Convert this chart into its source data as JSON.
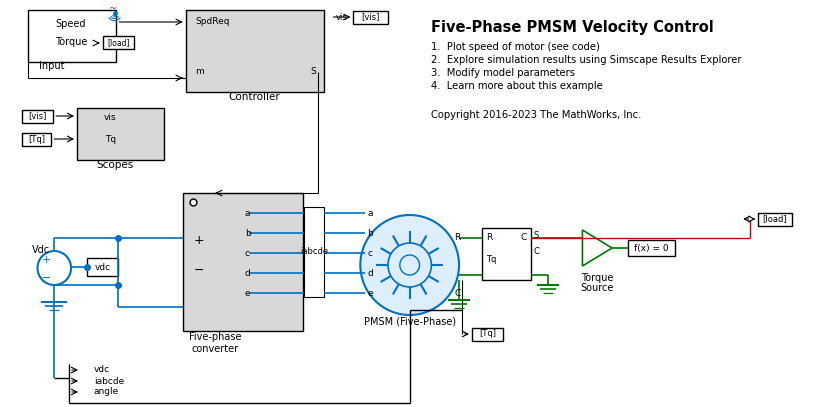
{
  "title": "Five-Phase PMSM Velocity Control",
  "bullets": [
    "1.  Plot speed of motor (see code)",
    "2.  Explore simulation results using Simscape Results Explorer",
    "3.  Modify model parameters",
    "4.  Learn more about this example"
  ],
  "copyright": "Copyright 2016-2023 The MathWorks, Inc.",
  "bg_color": "#ffffff",
  "block_fill_gray": "#d8d8d8",
  "block_edge": "#000000",
  "blue_line": "#0070c0",
  "blue_fill": "#ddeeff",
  "green_color": "#007700",
  "red_color": "#cc0000"
}
